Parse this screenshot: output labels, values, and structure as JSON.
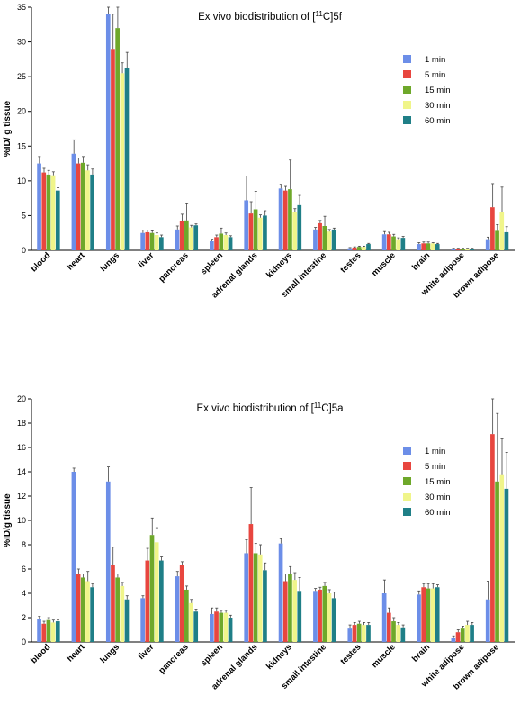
{
  "colors": [
    "#6C8EE8",
    "#E8463F",
    "#6EA82A",
    "#F0F58A",
    "#1F7F87"
  ],
  "chart_data": [
    {
      "type": "bar",
      "title_prefix": "Ex vivo biodistribution of [",
      "title_sup": "11",
      "title_suffix": "C]5f",
      "ylabel": "%ID/ g tissue",
      "ylim": [
        0,
        35
      ],
      "yticks": [
        0,
        5,
        10,
        15,
        20,
        25,
        30,
        35
      ],
      "grid": false,
      "legend_position": "right",
      "categories": [
        "blood",
        "heart",
        "lungs",
        "liver",
        "pancreas",
        "spleen",
        "adrenal glands",
        "kidneys",
        "small intestine",
        "testes",
        "muscle",
        "brain",
        "white adipose",
        "brown adipose"
      ],
      "series": [
        {
          "name": "1 min",
          "values": [
            12.5,
            13.9,
            34.0,
            2.5,
            3.0,
            1.3,
            7.2,
            8.9,
            3.0,
            0.3,
            2.3,
            0.9,
            0.2,
            1.6
          ],
          "errors": [
            1.0,
            2.0,
            1.5,
            0.4,
            0.5,
            0.3,
            3.5,
            0.6,
            0.3,
            0.1,
            0.4,
            0.2,
            0.1,
            0.3
          ]
        },
        {
          "name": "5 min",
          "values": [
            11.2,
            12.5,
            29.0,
            2.6,
            4.2,
            1.9,
            5.3,
            8.6,
            3.9,
            0.4,
            2.3,
            1.0,
            0.2,
            6.2
          ],
          "errors": [
            0.6,
            0.8,
            5.0,
            0.3,
            1.0,
            0.3,
            1.7,
            0.6,
            0.4,
            0.1,
            0.3,
            0.2,
            0.1,
            3.4
          ]
        },
        {
          "name": "15 min",
          "values": [
            10.9,
            12.6,
            32.0,
            2.5,
            4.3,
            2.4,
            5.9,
            8.8,
            3.5,
            0.5,
            2.0,
            1.0,
            0.2,
            2.8
          ],
          "errors": [
            0.6,
            0.9,
            3.0,
            0.3,
            2.4,
            0.8,
            2.6,
            4.2,
            1.4,
            0.1,
            0.3,
            0.2,
            0.1,
            0.9
          ]
        },
        {
          "name": "30 min",
          "values": [
            10.8,
            11.5,
            25.5,
            2.2,
            3.3,
            2.2,
            4.7,
            5.5,
            2.7,
            0.5,
            1.6,
            1.0,
            0.2,
            5.5
          ],
          "errors": [
            0.5,
            0.8,
            1.5,
            0.3,
            0.3,
            0.3,
            0.4,
            0.5,
            0.3,
            0.1,
            0.2,
            0.1,
            0.1,
            3.6
          ]
        },
        {
          "name": "60 min",
          "values": [
            8.6,
            10.9,
            26.3,
            1.9,
            3.6,
            1.9,
            5.0,
            6.5,
            3.0,
            0.9,
            1.8,
            0.9,
            0.2,
            2.6
          ],
          "errors": [
            0.4,
            0.8,
            2.2,
            0.3,
            0.2,
            0.2,
            0.7,
            1.4,
            0.2,
            0.1,
            0.2,
            0.1,
            0.1,
            0.8
          ]
        }
      ]
    },
    {
      "type": "bar",
      "title_prefix": "Ex vivo biodistribution of [",
      "title_sup": "11",
      "title_suffix": "C]5a",
      "ylabel": "%ID/g tissue",
      "ylim": [
        0,
        20
      ],
      "yticks": [
        0,
        2,
        4,
        6,
        8,
        10,
        12,
        14,
        16,
        18,
        20
      ],
      "grid": false,
      "legend_position": "right",
      "categories": [
        "blood",
        "heart",
        "lungs",
        "liver",
        "pancreas",
        "spleen",
        "adrenal glands",
        "kidneys",
        "small intestine",
        "testes",
        "muscle",
        "brain",
        "white adipose",
        "brown adipose"
      ],
      "series": [
        {
          "name": "1 min",
          "values": [
            1.9,
            14.0,
            13.2,
            3.6,
            5.4,
            2.3,
            7.3,
            8.1,
            4.2,
            1.1,
            4.0,
            3.9,
            0.3,
            3.5
          ],
          "errors": [
            0.2,
            0.3,
            1.2,
            0.2,
            0.4,
            0.5,
            1.1,
            0.4,
            0.2,
            0.3,
            1.1,
            0.3,
            0.2,
            1.5
          ]
        },
        {
          "name": "5 min",
          "values": [
            1.5,
            5.6,
            6.3,
            6.7,
            6.3,
            2.5,
            9.7,
            5.0,
            4.3,
            1.4,
            2.4,
            4.5,
            0.8,
            17.1
          ],
          "errors": [
            0.2,
            0.4,
            1.5,
            1.0,
            0.3,
            0.3,
            3.0,
            0.6,
            0.2,
            0.2,
            0.4,
            0.3,
            0.2,
            2.9
          ]
        },
        {
          "name": "15 min",
          "values": [
            1.8,
            5.3,
            5.3,
            8.8,
            4.3,
            2.4,
            7.3,
            5.6,
            4.6,
            1.5,
            1.7,
            4.4,
            1.1,
            13.2
          ],
          "errors": [
            0.2,
            0.3,
            0.3,
            1.4,
            0.3,
            0.2,
            0.8,
            0.6,
            0.3,
            0.2,
            0.3,
            0.4,
            0.2,
            5.6
          ]
        },
        {
          "name": "30 min",
          "values": [
            1.6,
            5.0,
            4.6,
            8.2,
            3.2,
            2.4,
            7.2,
            5.1,
            4.0,
            1.4,
            1.4,
            4.4,
            1.4,
            13.8
          ],
          "errors": [
            0.2,
            0.8,
            0.3,
            1.2,
            0.3,
            0.2,
            0.8,
            0.6,
            0.3,
            0.2,
            0.2,
            0.4,
            0.3,
            2.9
          ]
        },
        {
          "name": "60 min",
          "values": [
            1.7,
            4.5,
            3.5,
            6.7,
            2.5,
            2.0,
            5.9,
            4.2,
            3.6,
            1.4,
            1.2,
            4.5,
            1.4,
            12.6
          ],
          "errors": [
            0.1,
            0.3,
            0.3,
            0.3,
            0.2,
            0.2,
            0.6,
            1.1,
            0.5,
            0.2,
            0.2,
            0.2,
            0.2,
            3.0
          ]
        }
      ]
    }
  ]
}
